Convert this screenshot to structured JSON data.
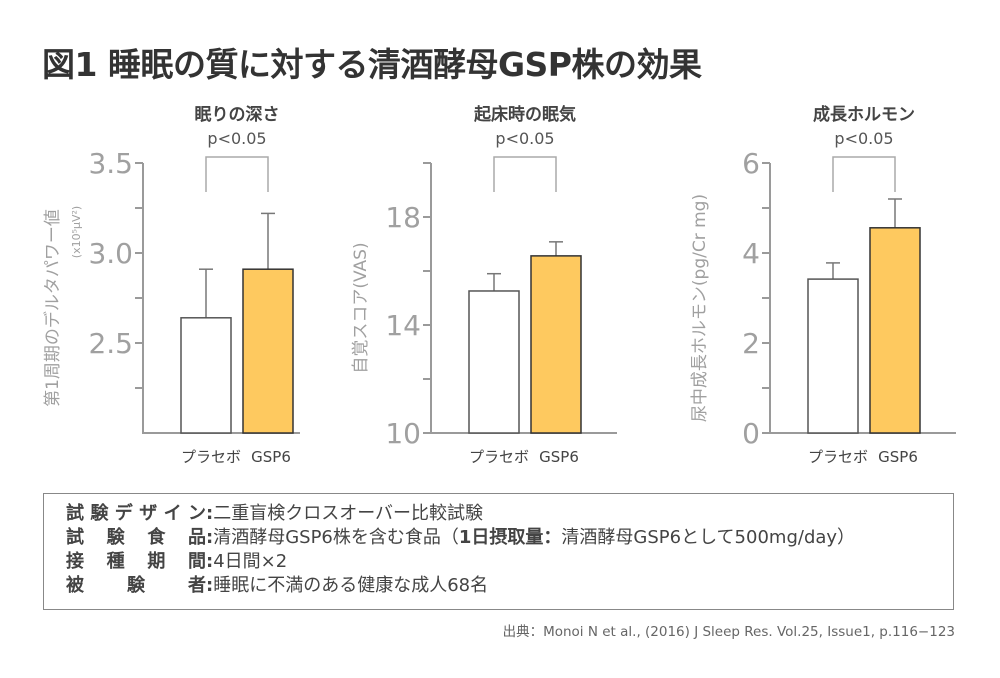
{
  "title": "図1  睡眠の質に対する清酒酵母GSP株の効果",
  "colors": {
    "placebo": "#ffffff",
    "gsp6": "#fec95f",
    "axis": "#999999",
    "text": "#333333"
  },
  "chart_data": [
    {
      "type": "bar",
      "title": "眠りの深さ",
      "significance": "p<0.05",
      "ylabel": "第1周期のデルタパワー値",
      "ylabel_unit": "(x10⁵μV²)",
      "categories": [
        "プラセボ",
        "GSP6"
      ],
      "values": [
        2.64,
        2.91
      ],
      "error": [
        0.27,
        0.31
      ],
      "ylim": [
        2.0,
        3.5
      ],
      "yticks": [
        2.5,
        3.0,
        3.5
      ],
      "ytick_labels": [
        "2.5",
        "3.0",
        "3.5"
      ],
      "minor_ticks": [
        2.25,
        2.75,
        3.25
      ],
      "grid": false
    },
    {
      "type": "bar",
      "title": "起床時の眠気",
      "significance": "p<0.05",
      "ylabel": "自覚スコア(VAS)",
      "ylabel_unit": "",
      "categories": [
        "プラセボ",
        "GSP6"
      ],
      "values": [
        15.26,
        16.56
      ],
      "error": [
        0.64,
        0.52
      ],
      "ylim": [
        10,
        20
      ],
      "yticks": [
        10,
        14,
        18
      ],
      "ytick_labels": [
        "10",
        "14",
        "18"
      ],
      "minor_ticks": [
        12,
        16,
        20
      ],
      "grid": false
    },
    {
      "type": "bar",
      "title": "成長ホルモン",
      "significance": "p<0.05",
      "ylabel": "尿中成長ホルモン(pg/Cr mg)",
      "ylabel_unit": "",
      "categories": [
        "プラセボ",
        "GSP6"
      ],
      "values": [
        3.42,
        4.56
      ],
      "error": [
        0.36,
        0.64
      ],
      "ylim": [
        0,
        6
      ],
      "yticks": [
        0,
        2,
        4,
        6
      ],
      "ytick_labels": [
        "0",
        "2",
        "4",
        "6"
      ],
      "minor_ticks": [
        1,
        3,
        5
      ],
      "grid": false
    }
  ],
  "info": {
    "rows": [
      {
        "label": "試験デザイン",
        "colon": ":",
        "value": "二重盲検クロスオーバー比較試験"
      },
      {
        "label": "試験食品",
        "colon": ":",
        "value": "清酒酵母GSP6株を含む食品（",
        "bold_part": "1日摂取量：",
        "value_after": "清酒酵母GSP6として500mg/day）"
      },
      {
        "label": "接種期間",
        "colon": ":",
        "value": "4日間×2"
      },
      {
        "label": "被験者",
        "colon": ":",
        "value": "睡眠に不満のある健康な成人68名"
      }
    ]
  },
  "citation": "出典：Monoi N et al., (2016) J Sleep Res.  Vol.25, Issue1, p.116−123"
}
